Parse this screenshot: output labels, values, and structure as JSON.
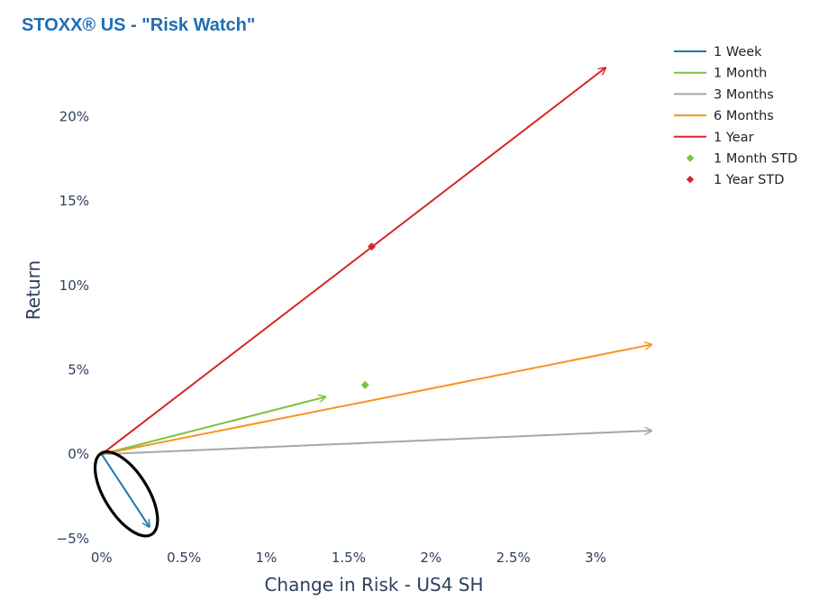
{
  "chart_data": {
    "type": "line",
    "title": "STOXX® US - \"Risk Watch\"",
    "xlabel": "Change in Risk - US4 SH",
    "ylabel": "Return",
    "xlim": [
      -0.07,
      3.35
    ],
    "ylim": [
      -5.7,
      24.3
    ],
    "x_ticks": [
      0,
      0.5,
      1,
      1.5,
      2,
      2.5,
      3
    ],
    "x_tick_labels": [
      "0%",
      "0.5%",
      "1%",
      "1.5%",
      "2%",
      "2.5%",
      "3%"
    ],
    "y_ticks": [
      -5,
      0,
      5,
      10,
      15,
      20
    ],
    "y_tick_labels": [
      "−5%",
      "0%",
      "5%",
      "10%",
      "15%",
      "20%"
    ],
    "grid": false,
    "legend_position": "top-right",
    "series": [
      {
        "name": "1 Week",
        "kind": "arrow",
        "color": "#1f77b4",
        "x": [
          0,
          0.29
        ],
        "y": [
          0,
          -4.3
        ]
      },
      {
        "name": "1 Month",
        "kind": "arrow",
        "color": "#7cc242",
        "x": [
          0,
          1.36
        ],
        "y": [
          0,
          3.4
        ]
      },
      {
        "name": "3 Months",
        "kind": "arrow",
        "color": "#a6a6a6",
        "x": [
          0,
          3.34
        ],
        "y": [
          0,
          1.4
        ]
      },
      {
        "name": "6 Months",
        "kind": "arrow",
        "color": "#f7941d",
        "x": [
          0,
          3.34
        ],
        "y": [
          0,
          6.5
        ]
      },
      {
        "name": "1 Year",
        "kind": "arrow",
        "color": "#d62728",
        "x": [
          0,
          3.06
        ],
        "y": [
          0,
          22.9
        ]
      },
      {
        "name": "1 Month STD",
        "kind": "marker",
        "color": "#7cc242",
        "x": [
          1.6
        ],
        "y": [
          4.1
        ]
      },
      {
        "name": "1 Year STD",
        "kind": "marker",
        "color": "#d62728",
        "x": [
          1.64
        ],
        "y": [
          12.3
        ]
      }
    ],
    "annotations": [
      {
        "type": "ellipse",
        "color": "#000000",
        "center": [
          0.15,
          -2.35
        ],
        "note": "highlight around 1 Week arrow"
      }
    ]
  }
}
